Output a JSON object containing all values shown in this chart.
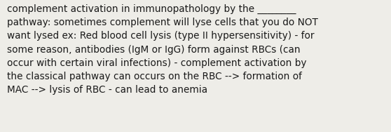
{
  "background_color": "#eeede8",
  "text_color": "#1a1a1a",
  "font_size": 9.8,
  "font_family": "DejaVu Sans",
  "text": "complement activation in immunopathology by the ________\npathway: sometimes complement will lyse cells that you do NOT\nwant lysed ex: Red blood cell lysis (type II hypersensitivity) - for\nsome reason, antibodies (IgM or IgG) form against RBCs (can\noccur with certain viral infections) - complement activation by\nthe classical pathway can occurs on the RBC --> formation of\nMAC --> lysis of RBC - can lead to anemia",
  "fig_width": 5.58,
  "fig_height": 1.88,
  "dpi": 100
}
